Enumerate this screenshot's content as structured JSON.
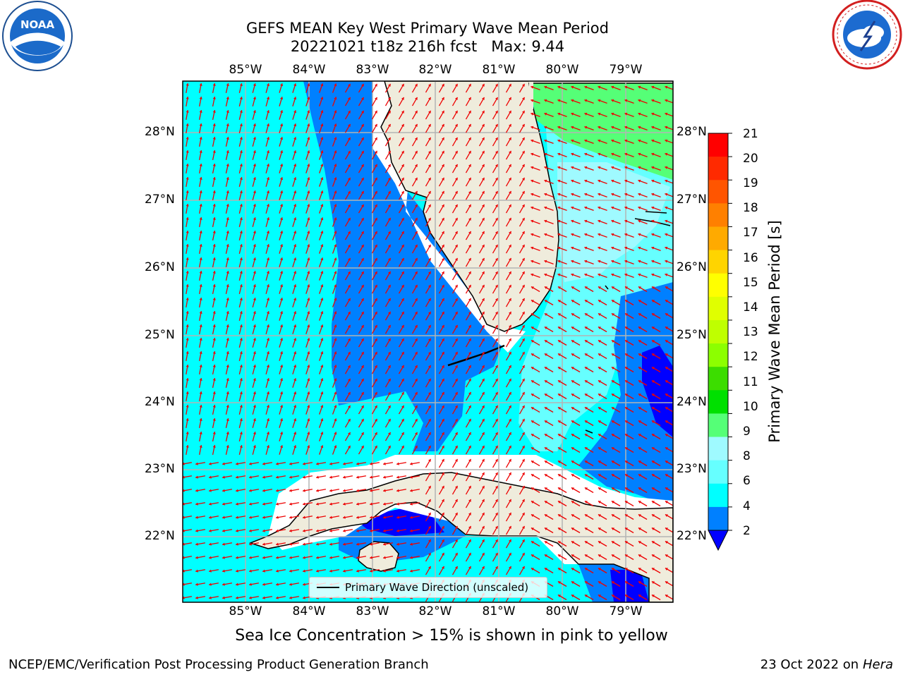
{
  "header": {
    "title_line1": "GEFS MEAN Key West Primary Wave Mean Period",
    "title_line2": "20221021 t18z 216h fcst   Max: 9.44"
  },
  "logos": {
    "noaa": "NOAA",
    "noaa_ring": "NATIONAL OCEANIC AND ATMOSPHERIC ADMINISTRATION · U.S. DEPARTMENT OF COMMERCE",
    "nws_ring": "NATIONAL WEATHER SERVICE"
  },
  "map": {
    "lon_labels": [
      "85°W",
      "84°W",
      "83°W",
      "82°W",
      "81°W",
      "80°W",
      "79°W"
    ],
    "lat_labels": [
      "28°N",
      "27°N",
      "26°N",
      "25°N",
      "24°N",
      "23°N",
      "22°N"
    ],
    "legend_label": "Primary Wave Direction (unscaled)",
    "colors": {
      "land": "#efecdc",
      "level_2_4": "#0080ff",
      "level_4_6": "#00ffff",
      "level_6_8": "#66ffff",
      "level_8_9": "#9ffaff",
      "level_9_10": "#55ff77",
      "below_2": "#0000ff",
      "arrow": "#ee0000",
      "grid": "#b4b4b4"
    }
  },
  "colorbar": {
    "title": "Primary Wave Mean Period [s]",
    "ticks": [
      "21",
      "20",
      "19",
      "18",
      "17",
      "16",
      "15",
      "14",
      "13",
      "12",
      "11",
      "10",
      "9",
      "8",
      "6",
      "4",
      "2"
    ],
    "colors": [
      "#ff0000",
      "#ff2a00",
      "#ff5500",
      "#ff8000",
      "#ffaa00",
      "#ffd400",
      "#ffff00",
      "#e0ff00",
      "#bfff00",
      "#8cff00",
      "#3cdd00",
      "#00e000",
      "#55ff77",
      "#9ffaff",
      "#66ffff",
      "#00ffff",
      "#0080ff"
    ]
  },
  "footer": {
    "note": "Sea Ice Concentration > 15% is shown in pink to yellow",
    "org": "NCEP/EMC/Verification Post Processing Product Generation Branch",
    "date": "23 Oct 2022 on",
    "host": "Hera"
  }
}
